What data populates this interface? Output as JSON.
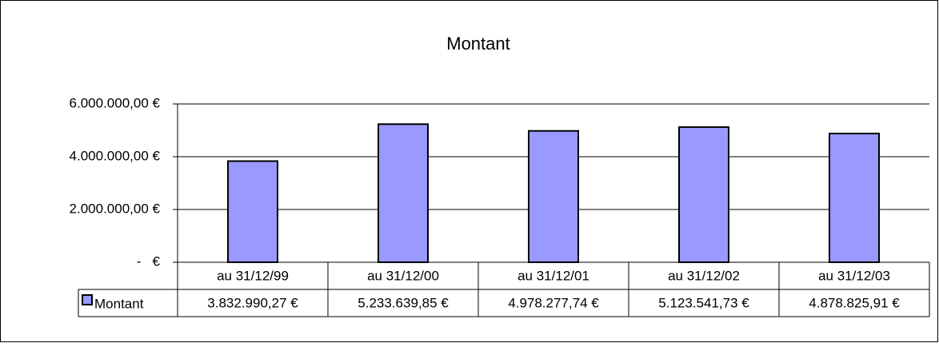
{
  "chart_data": {
    "type": "bar",
    "title": "Montant",
    "categories": [
      "au 31/12/99",
      "au 31/12/00",
      "au 31/12/01",
      "au 31/12/02",
      "au 31/12/03"
    ],
    "series": [
      {
        "name": "Montant",
        "color": "#9999ff",
        "values": [
          3832990.27,
          5233639.85,
          4978277.74,
          5123541.73,
          4878825.91
        ],
        "value_labels": [
          "3.832.990,27 €",
          "5.233.639,85 €",
          "4.978.277,74 €",
          "5.123.541,73 €",
          "4.878.825,91 €"
        ]
      }
    ],
    "ylim": [
      0,
      6000000
    ],
    "yticks": [
      {
        "value": 0,
        "label": "-   €"
      },
      {
        "value": 2000000,
        "label": "2.000.000,00 €"
      },
      {
        "value": 4000000,
        "label": "4.000.000,00 €"
      },
      {
        "value": 6000000,
        "label": "6.000.000,00 €"
      }
    ],
    "grid": true
  }
}
